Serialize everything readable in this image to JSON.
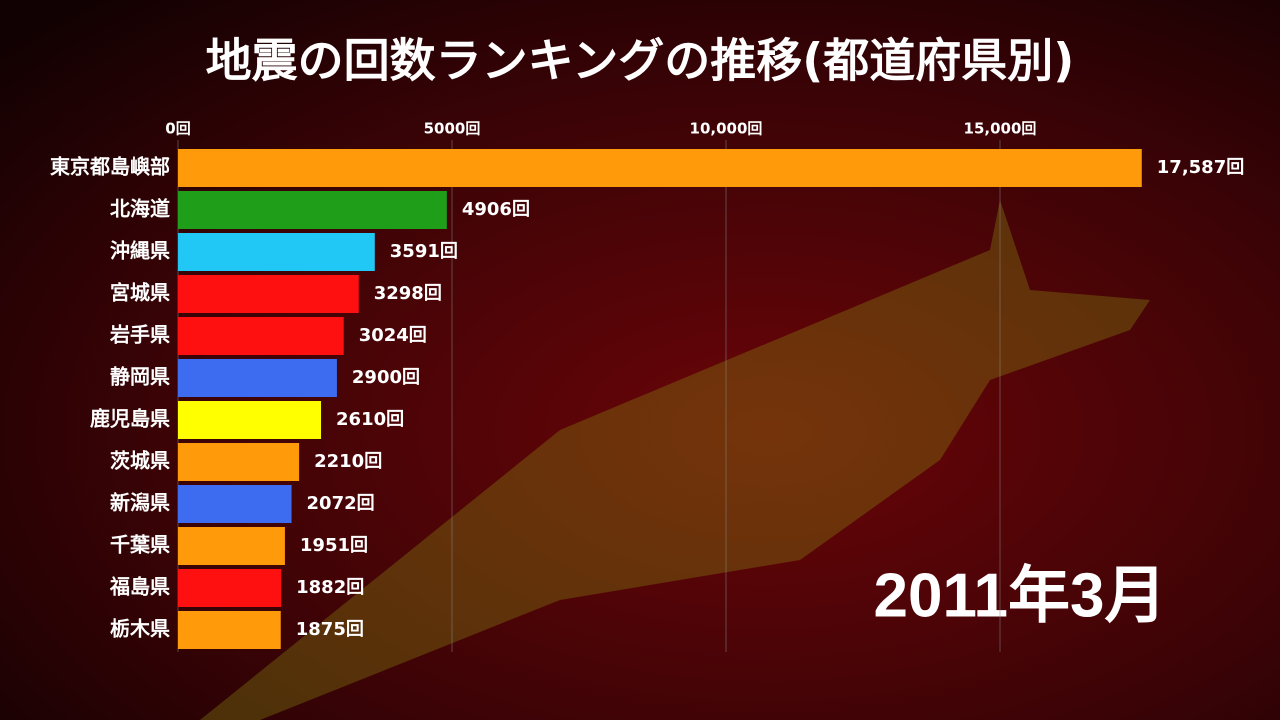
{
  "chart_data": {
    "type": "barh",
    "title": "地震の回数ランキングの推移(都道府県別)",
    "annotation": "2011年3月",
    "categories": [
      "東京都島嶼部",
      "北海道",
      "沖縄県",
      "宮城県",
      "岩手県",
      "静岡県",
      "鹿児島県",
      "茨城県",
      "新潟県",
      "千葉県",
      "福島県",
      "栃木県"
    ],
    "values": [
      17587,
      4906,
      3591,
      3298,
      3024,
      2900,
      2610,
      2210,
      2072,
      1951,
      1882,
      1875
    ],
    "value_labels": [
      "17,587回",
      "4906回",
      "3591回",
      "3298回",
      "3024回",
      "2900回",
      "2610回",
      "2210回",
      "2072回",
      "1951回",
      "1882回",
      "1875回"
    ],
    "colors": [
      "#ff9a0a",
      "#1f9e1a",
      "#22c8f5",
      "#ff1010",
      "#ff1010",
      "#3d6cf0",
      "#ffff00",
      "#ff9a0a",
      "#3d6cf0",
      "#ff9a0a",
      "#ff1010",
      "#ff9a0a"
    ],
    "xlim": [
      0,
      20000
    ],
    "xticks": [
      {
        "value": 0,
        "label": "0回"
      },
      {
        "value": 5000,
        "label": "5000回"
      },
      {
        "value": 10000,
        "label": "10,000回"
      },
      {
        "value": 15000,
        "label": "15,000回"
      }
    ],
    "grid": true
  }
}
